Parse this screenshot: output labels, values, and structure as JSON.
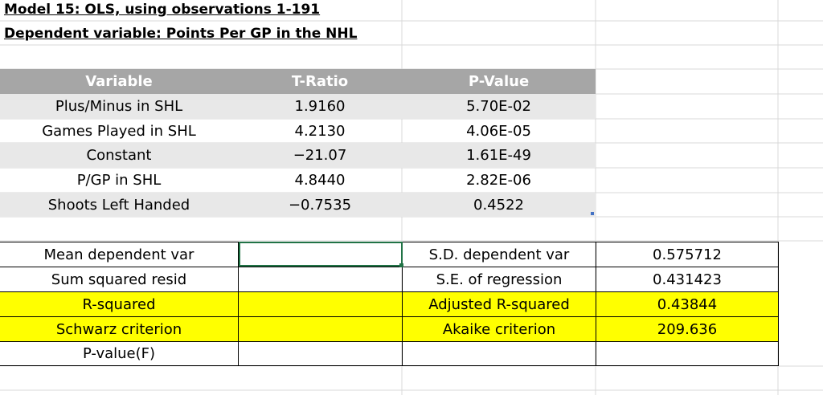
{
  "title": {
    "line1": "Model 15: OLS, using observations 1-191",
    "line2": "Dependent variable: Points Per GP in the NHL"
  },
  "coef_table": {
    "headers": [
      "Variable",
      "T-Ratio",
      "P-Value"
    ],
    "rows": [
      {
        "variable": "Plus/Minus in SHL",
        "t_ratio": "1.9160",
        "p_value": "5.70E-02"
      },
      {
        "variable": "Games Played in SHL",
        "t_ratio": "4.2130",
        "p_value": "4.06E-05"
      },
      {
        "variable": "Constant",
        "t_ratio": "−21.07",
        "p_value": "1.61E-49"
      },
      {
        "variable": "P/GP in SHL",
        "t_ratio": "4.8440",
        "p_value": "2.82E-06"
      },
      {
        "variable": "Shoots Left Handed",
        "t_ratio": "−0.7535",
        "p_value": "0.4522"
      }
    ]
  },
  "stats_table": {
    "rows": [
      {
        "label1": "Mean dependent var",
        "value1": "",
        "label2": "S.D. dependent var",
        "value2": "0.575712",
        "highlight": false
      },
      {
        "label1": "Sum squared resid",
        "value1": "",
        "label2": "S.E. of regression",
        "value2": "0.431423",
        "highlight": false
      },
      {
        "label1": "R-squared",
        "value1": "",
        "label2": "Adjusted R-squared",
        "value2": "0.43844",
        "highlight": true
      },
      {
        "label1": "Schwarz criterion",
        "value1": "",
        "label2": "Akaike criterion",
        "value2": "209.636",
        "highlight": true
      },
      {
        "label1": "P-value(F)",
        "value1": "",
        "label2": "",
        "value2": "",
        "highlight": false
      }
    ]
  },
  "colors": {
    "header_bg": "#a6a6a6",
    "row_shade": "#e8e8e8",
    "highlight": "#ffff00",
    "selection": "#217346",
    "gridline": "#d9d9d9"
  }
}
